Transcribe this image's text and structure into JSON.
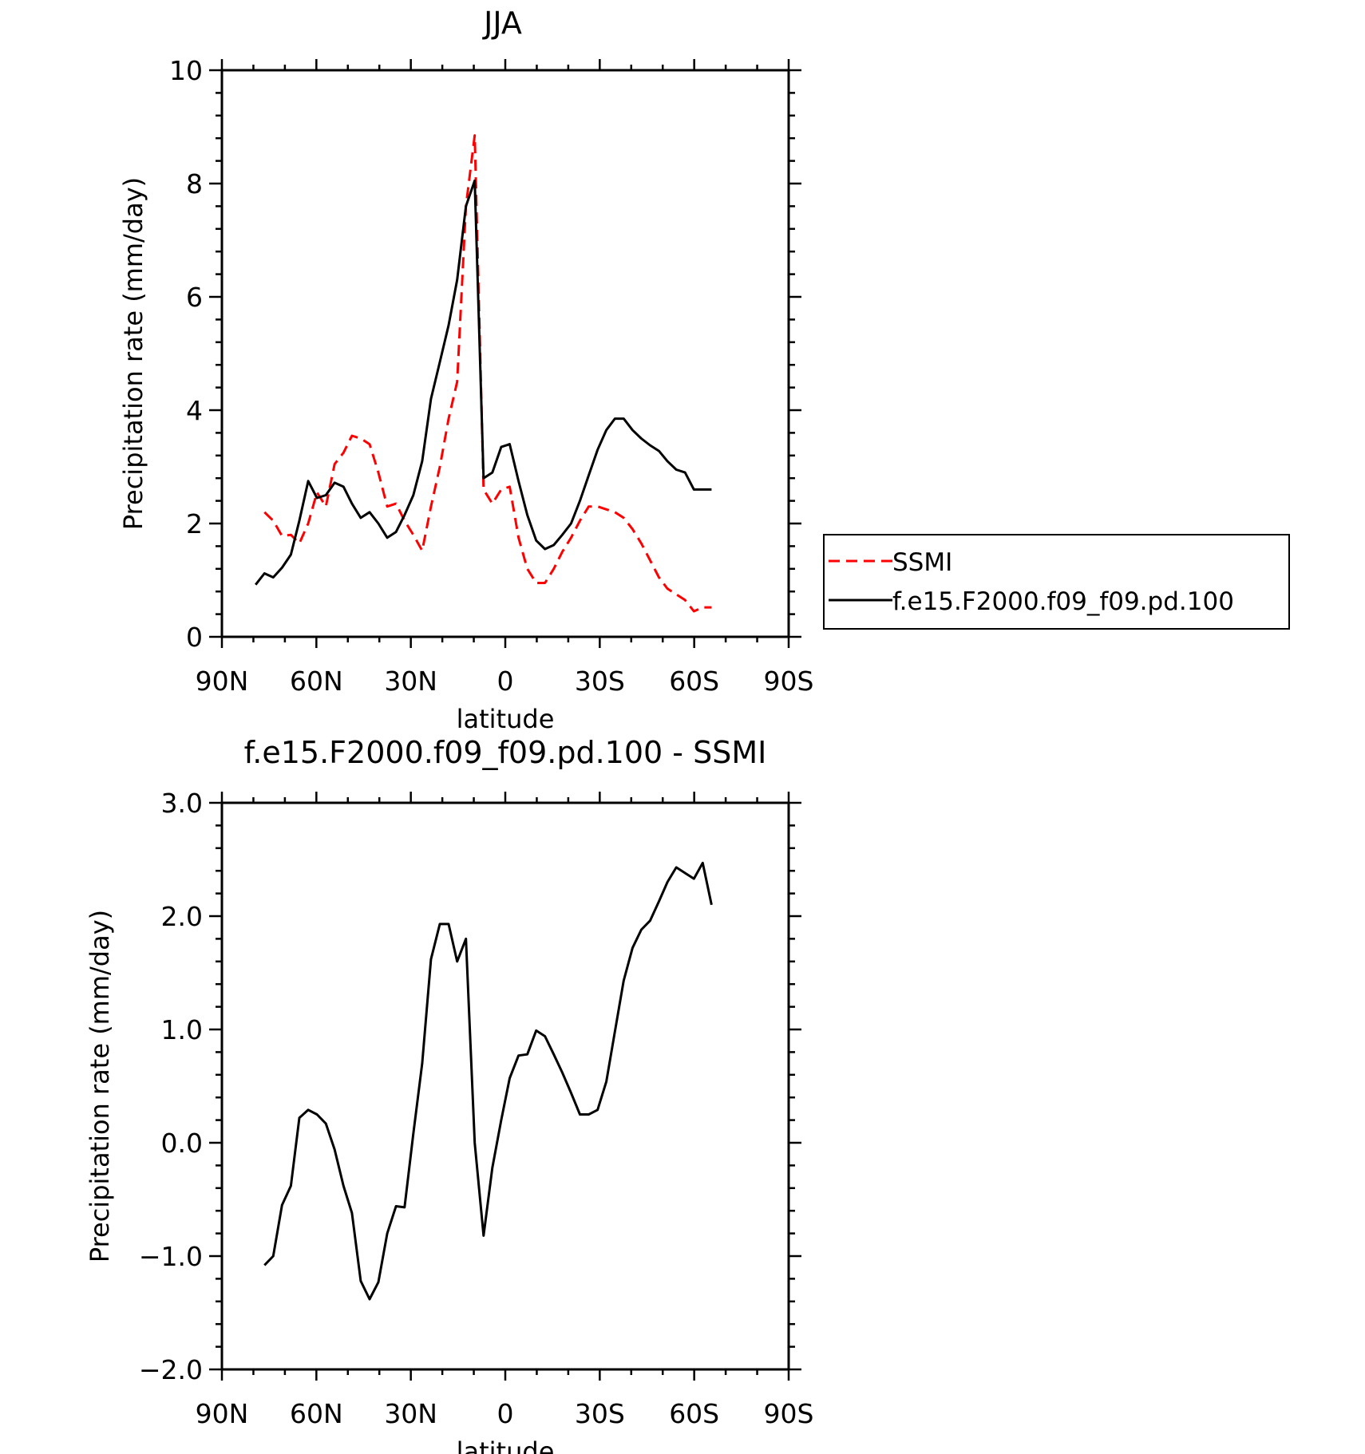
{
  "chart_data": [
    {
      "type": "line",
      "title": "JJA",
      "xlabel": "latitude",
      "ylabel": "Precipitation rate (mm/day)",
      "xlim": [
        90,
        -90
      ],
      "ylim": [
        0,
        10
      ],
      "xticks": [
        {
          "value": 90,
          "label": "90N"
        },
        {
          "value": 60,
          "label": "60N"
        },
        {
          "value": 30,
          "label": "30N"
        },
        {
          "value": 0,
          "label": "0"
        },
        {
          "value": -30,
          "label": "30S"
        },
        {
          "value": -60,
          "label": "60S"
        },
        {
          "value": -90,
          "label": "90S"
        }
      ],
      "yticks": [
        {
          "value": 0,
          "label": "0"
        },
        {
          "value": 2,
          "label": "2"
        },
        {
          "value": 4,
          "label": "4"
        },
        {
          "value": 6,
          "label": "6"
        },
        {
          "value": 8,
          "label": "8"
        },
        {
          "value": 10,
          "label": "10"
        }
      ],
      "legend": "right",
      "series": [
        {
          "name": "SSMI",
          "color": "#ff0000",
          "style": "dashed",
          "x": [
            76.5,
            73.7,
            70.9,
            68.1,
            65.4,
            62.6,
            59.8,
            57.0,
            54.2,
            51.4,
            48.7,
            45.9,
            43.1,
            40.3,
            37.5,
            34.7,
            32.0,
            29.2,
            26.4,
            23.6,
            20.8,
            18.0,
            15.3,
            12.5,
            9.7,
            6.9,
            4.1,
            1.3,
            -1.4,
            -4.2,
            -7.0,
            -9.8,
            -12.6,
            -15.4,
            -18.1,
            -20.9,
            -23.7,
            -26.5,
            -29.3,
            -32.1,
            -34.8,
            -37.6,
            -40.4,
            -43.2,
            -46.0,
            -48.8,
            -51.5,
            -54.3,
            -57.1,
            -59.9,
            -62.7,
            -65.5
          ],
          "y": [
            2.2,
            2.05,
            1.78,
            1.8,
            1.65,
            2.0,
            2.55,
            2.3,
            3.05,
            3.25,
            3.55,
            3.5,
            3.4,
            2.9,
            2.3,
            2.35,
            2.05,
            1.8,
            1.52,
            2.3,
            3.0,
            3.85,
            4.5,
            7.6,
            8.85,
            2.6,
            2.35,
            2.6,
            2.65,
            1.75,
            1.2,
            0.95,
            0.95,
            1.2,
            1.5,
            1.75,
            2.05,
            2.3,
            2.3,
            2.25,
            2.2,
            2.1,
            1.9,
            1.65,
            1.35,
            1.05,
            0.85,
            0.75,
            0.65,
            0.45,
            0.52,
            0.52
          ]
        },
        {
          "name": "f.e15.F2000.f09_f09.pd.100",
          "color": "#000000",
          "style": "solid",
          "x": [
            79.3,
            76.5,
            73.7,
            70.9,
            68.1,
            65.4,
            62.6,
            59.8,
            57.0,
            54.2,
            51.4,
            48.7,
            45.9,
            43.1,
            40.3,
            37.5,
            34.7,
            32.0,
            29.2,
            26.4,
            23.6,
            20.8,
            18.0,
            15.3,
            12.5,
            9.7,
            6.9,
            4.1,
            1.3,
            -1.4,
            -4.2,
            -7.0,
            -9.8,
            -12.6,
            -15.4,
            -18.1,
            -20.9,
            -23.7,
            -26.5,
            -29.3,
            -32.1,
            -34.8,
            -37.6,
            -40.4,
            -43.2,
            -46.0,
            -48.8,
            -51.5,
            -54.3,
            -57.1,
            -59.9,
            -62.7,
            -65.5
          ],
          "y": [
            0.92,
            1.12,
            1.05,
            1.22,
            1.45,
            2.05,
            2.75,
            2.45,
            2.5,
            2.72,
            2.65,
            2.35,
            2.1,
            2.2,
            2.0,
            1.75,
            1.85,
            2.15,
            2.5,
            3.1,
            4.2,
            4.85,
            5.5,
            6.3,
            7.6,
            8.05,
            2.8,
            2.9,
            3.35,
            3.4,
            2.75,
            2.15,
            1.7,
            1.55,
            1.62,
            1.8,
            2.0,
            2.4,
            2.85,
            3.3,
            3.65,
            3.85,
            3.85,
            3.65,
            3.5,
            3.38,
            3.28,
            3.1,
            2.95,
            2.9,
            2.6,
            2.6,
            2.6
          ]
        }
      ]
    },
    {
      "type": "line",
      "title": "f.e15.F2000.f09_f09.pd.100 - SSMI",
      "xlabel": "latitude",
      "ylabel": "Precipitation rate (mm/day)",
      "xlim": [
        90,
        -90
      ],
      "ylim": [
        -2.0,
        3.0
      ],
      "xticks": [
        {
          "value": 90,
          "label": "90N"
        },
        {
          "value": 60,
          "label": "60N"
        },
        {
          "value": 30,
          "label": "30N"
        },
        {
          "value": 0,
          "label": "0"
        },
        {
          "value": -30,
          "label": "30S"
        },
        {
          "value": -60,
          "label": "60S"
        },
        {
          "value": -90,
          "label": "90S"
        }
      ],
      "yticks": [
        {
          "value": -2.0,
          "label": "−2.0"
        },
        {
          "value": -1.0,
          "label": "−1.0"
        },
        {
          "value": 0.0,
          "label": "0.0"
        },
        {
          "value": 1.0,
          "label": "1.0"
        },
        {
          "value": 2.0,
          "label": "2.0"
        },
        {
          "value": 3.0,
          "label": "3.0"
        }
      ],
      "series": [
        {
          "color": "#000000",
          "style": "solid",
          "x": [
            76.5,
            73.7,
            70.9,
            68.1,
            65.4,
            62.6,
            59.8,
            57.0,
            54.2,
            51.4,
            48.7,
            45.9,
            43.1,
            40.3,
            37.5,
            34.7,
            32.0,
            29.2,
            26.4,
            23.6,
            20.8,
            18.0,
            15.3,
            12.5,
            9.7,
            6.9,
            4.1,
            1.3,
            -1.4,
            -4.2,
            -7.0,
            -9.8,
            -12.6,
            -15.4,
            -18.1,
            -20.9,
            -23.7,
            -26.5,
            -29.3,
            -32.1,
            -34.8,
            -37.6,
            -40.4,
            -43.2,
            -46.0,
            -48.8,
            -51.5,
            -54.3,
            -57.1,
            -59.9,
            -62.7,
            -65.5
          ],
          "y": [
            -1.08,
            -1.0,
            -0.55,
            -0.38,
            0.22,
            0.29,
            0.25,
            0.17,
            -0.06,
            -0.38,
            -0.62,
            -1.22,
            -1.38,
            -1.23,
            -0.8,
            -0.56,
            -0.57,
            0.08,
            0.7,
            1.62,
            1.93,
            1.93,
            1.6,
            1.8,
            0.0,
            -0.82,
            -0.22,
            0.2,
            0.57,
            0.77,
            0.78,
            0.99,
            0.94,
            0.78,
            0.62,
            0.44,
            0.25,
            0.25,
            0.29,
            0.54,
            0.98,
            1.43,
            1.72,
            1.88,
            1.96,
            2.13,
            2.3,
            2.43,
            2.38,
            2.33,
            2.47,
            2.1
          ]
        }
      ]
    }
  ]
}
